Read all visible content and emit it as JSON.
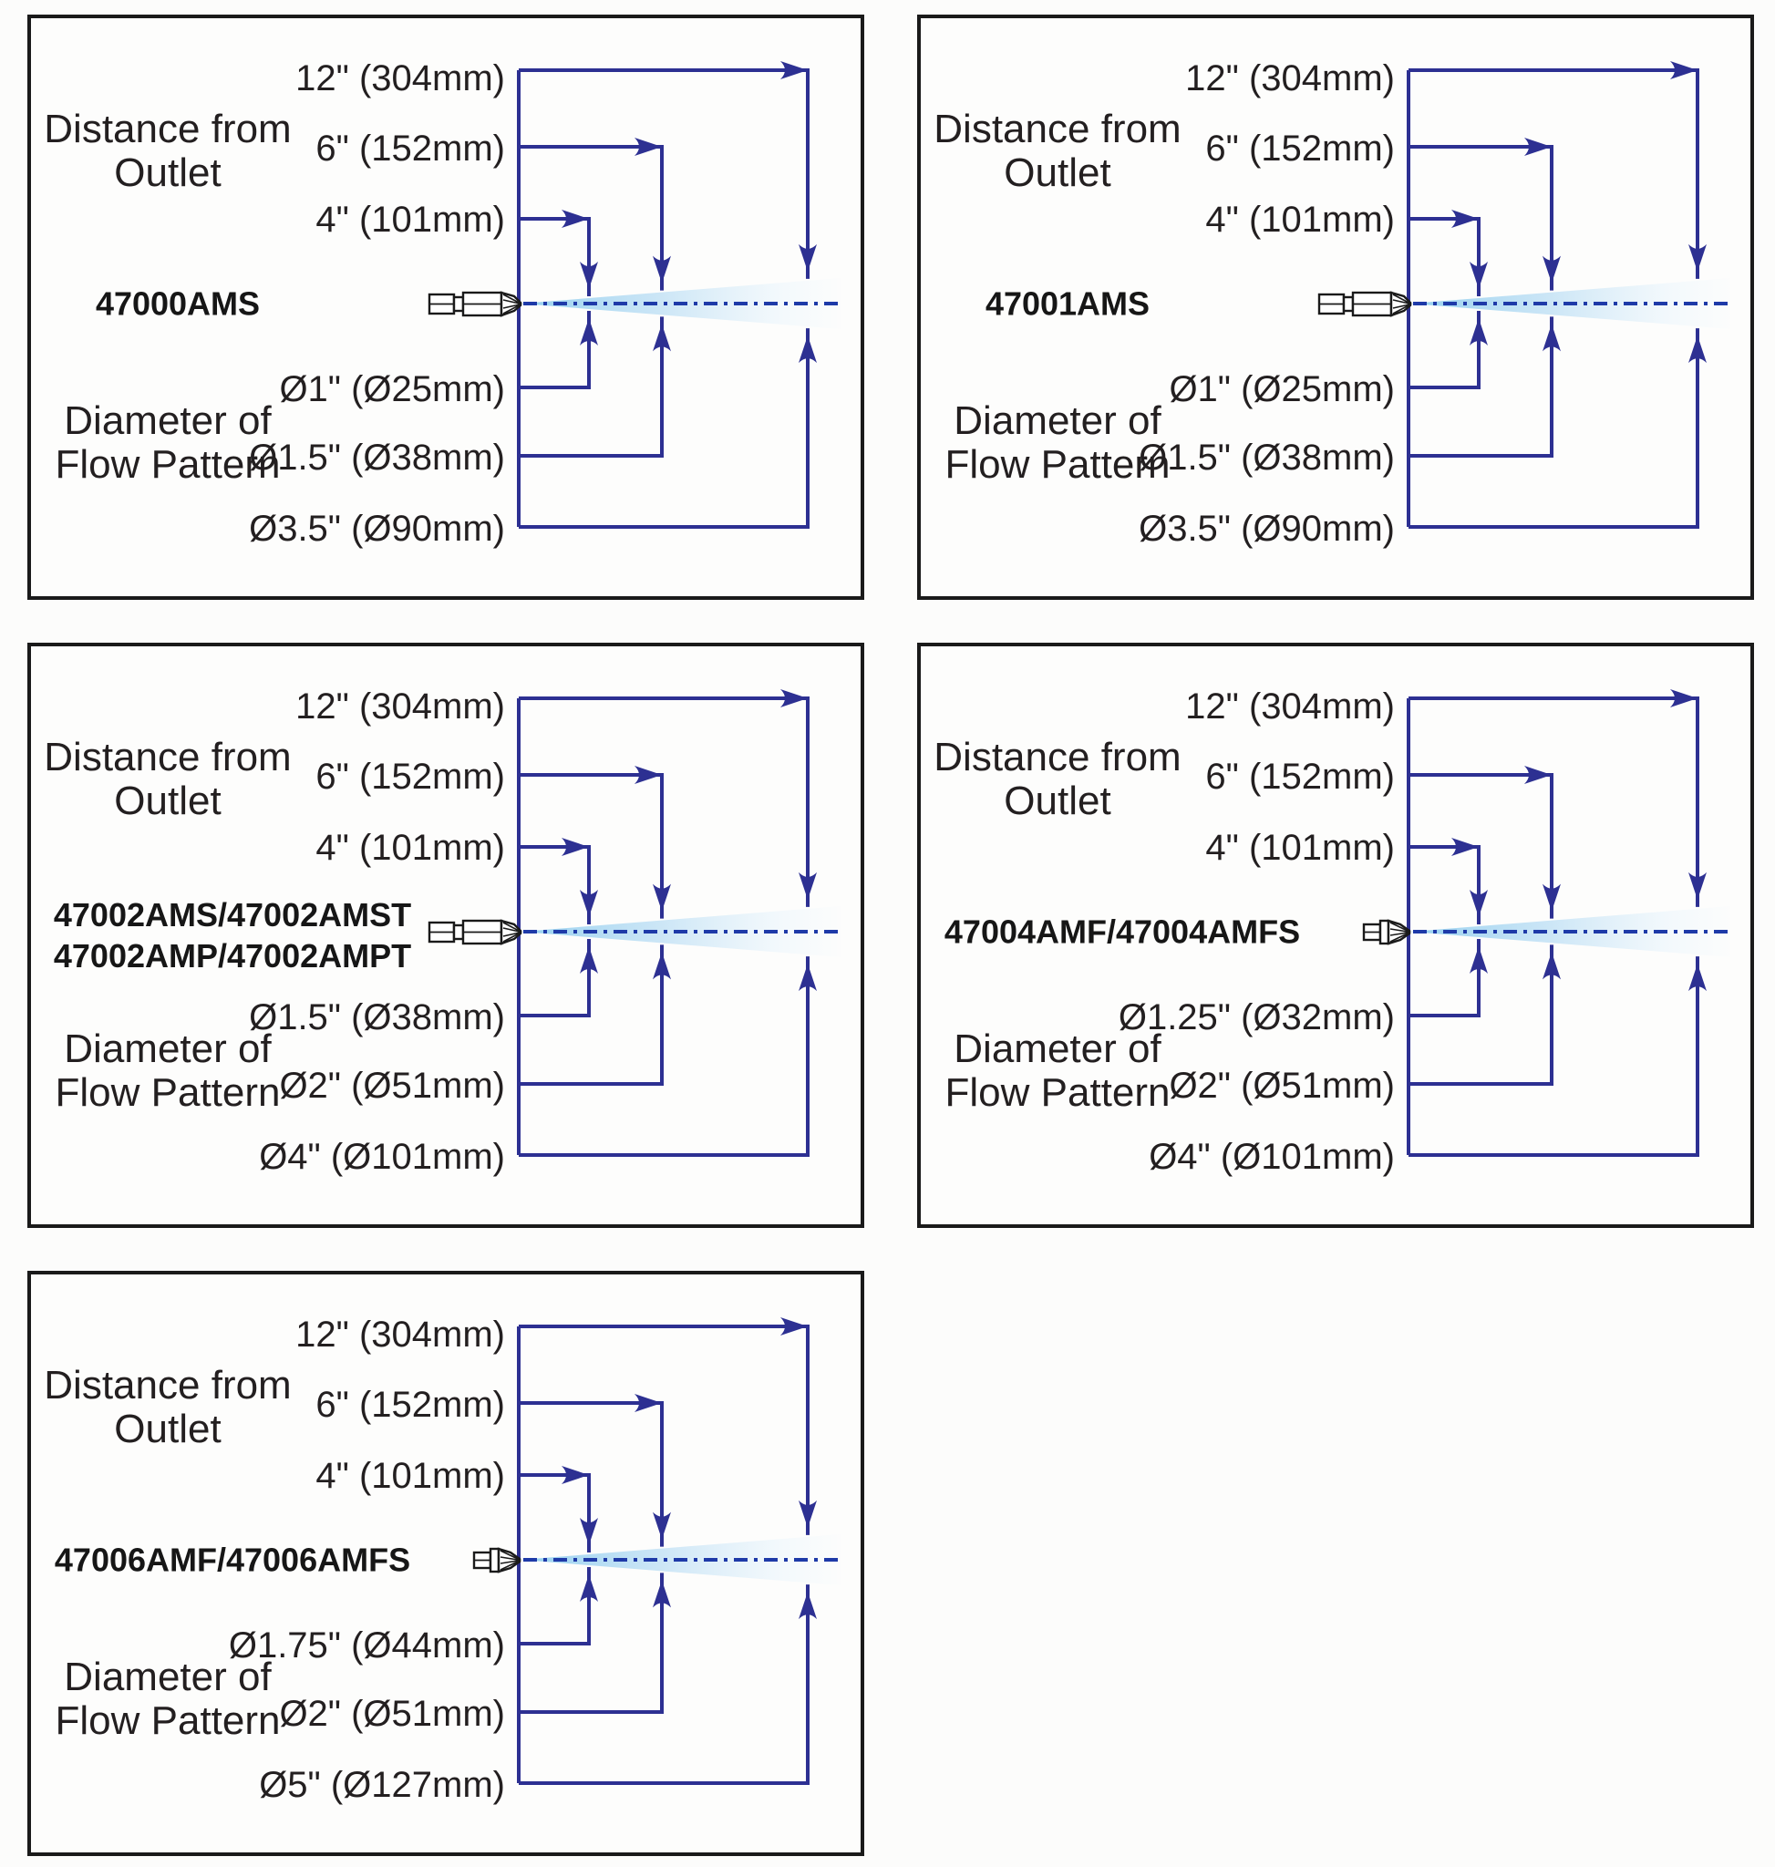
{
  "colors": {
    "line": "#2d3092",
    "centerline": "#1e3aa8",
    "spray_strong": "#8ecdee",
    "spray_mid": "#b0d9f3",
    "spray_faint": "#e8f4fc",
    "nozzle_stroke": "#1a1a1a",
    "text": "#231f20",
    "panel_border": "#1a1a1a"
  },
  "shared": {
    "distance_heading": [
      "Distance from",
      "Outlet"
    ],
    "diameter_heading": [
      "Diameter of",
      "Flow Pattern"
    ]
  },
  "panels": [
    {
      "model_lines": [
        "47000AMS"
      ],
      "nozzle": "long",
      "distances": [
        "12\" (304mm)",
        "6\" (152mm)",
        "4\" (101mm)"
      ],
      "diameters": [
        "Ø1\" (Ø25mm)",
        "Ø1.5\" (Ø38mm)",
        "Ø3.5\" (Ø90mm)"
      ]
    },
    {
      "model_lines": [
        "47001AMS"
      ],
      "nozzle": "long",
      "distances": [
        "12\" (304mm)",
        "6\" (152mm)",
        "4\" (101mm)"
      ],
      "diameters": [
        "Ø1\" (Ø25mm)",
        "Ø1.5\" (Ø38mm)",
        "Ø3.5\" (Ø90mm)"
      ]
    },
    {
      "model_lines": [
        "47002AMS/47002AMST",
        "47002AMP/47002AMPT"
      ],
      "nozzle": "long",
      "distances": [
        "12\" (304mm)",
        "6\" (152mm)",
        "4\" (101mm)"
      ],
      "diameters": [
        "Ø1.5\" (Ø38mm)",
        "Ø2\" (Ø51mm)",
        "Ø4\" (Ø101mm)"
      ]
    },
    {
      "model_lines": [
        "47004AMF/47004AMFS"
      ],
      "nozzle": "short",
      "distances": [
        "12\" (304mm)",
        "6\" (152mm)",
        "4\" (101mm)"
      ],
      "diameters": [
        "Ø1.25\" (Ø32mm)",
        "Ø2\" (Ø51mm)",
        "Ø4\" (Ø101mm)"
      ]
    },
    {
      "model_lines": [
        "47006AMF/47006AMFS"
      ],
      "nozzle": "short",
      "distances": [
        "12\" (304mm)",
        "6\" (152mm)",
        "4\" (101mm)"
      ],
      "diameters": [
        "Ø1.75\" (Ø44mm)",
        "Ø2\" (Ø51mm)",
        "Ø5\" (Ø127mm)"
      ]
    }
  ]
}
